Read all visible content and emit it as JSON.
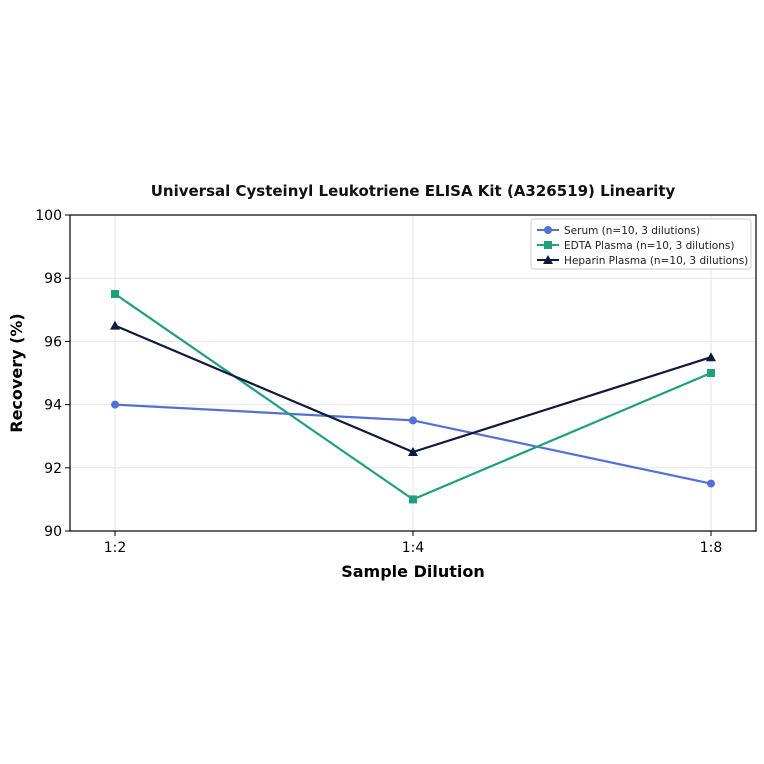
{
  "chart_data": {
    "type": "line",
    "title": "Universal Cysteinyl Leukotriene ELISA Kit (A326519) Linearity",
    "xlabel": "Sample Dilution",
    "ylabel": "Recovery (%)",
    "categories": [
      "1:2",
      "1:4",
      "1:8"
    ],
    "ylim": [
      90,
      100
    ],
    "yticks": [
      "90",
      "92",
      "94",
      "96",
      "98",
      "100"
    ],
    "grid": true,
    "legend_position": "top-right",
    "series": [
      {
        "name": "Serum (n=10, 3 dilutions)",
        "values": [
          94.0,
          93.5,
          91.5
        ],
        "color": "#5470d6",
        "marker": "circle"
      },
      {
        "name": "EDTA Plasma (n=10, 3 dilutions)",
        "values": [
          97.5,
          91.0,
          95.0
        ],
        "color": "#20a07a",
        "marker": "square"
      },
      {
        "name": "Heparin Plasma (n=10, 3 dilutions)",
        "values": [
          96.5,
          92.5,
          95.5
        ],
        "color": "#0f1a3c",
        "marker": "triangle"
      }
    ]
  }
}
